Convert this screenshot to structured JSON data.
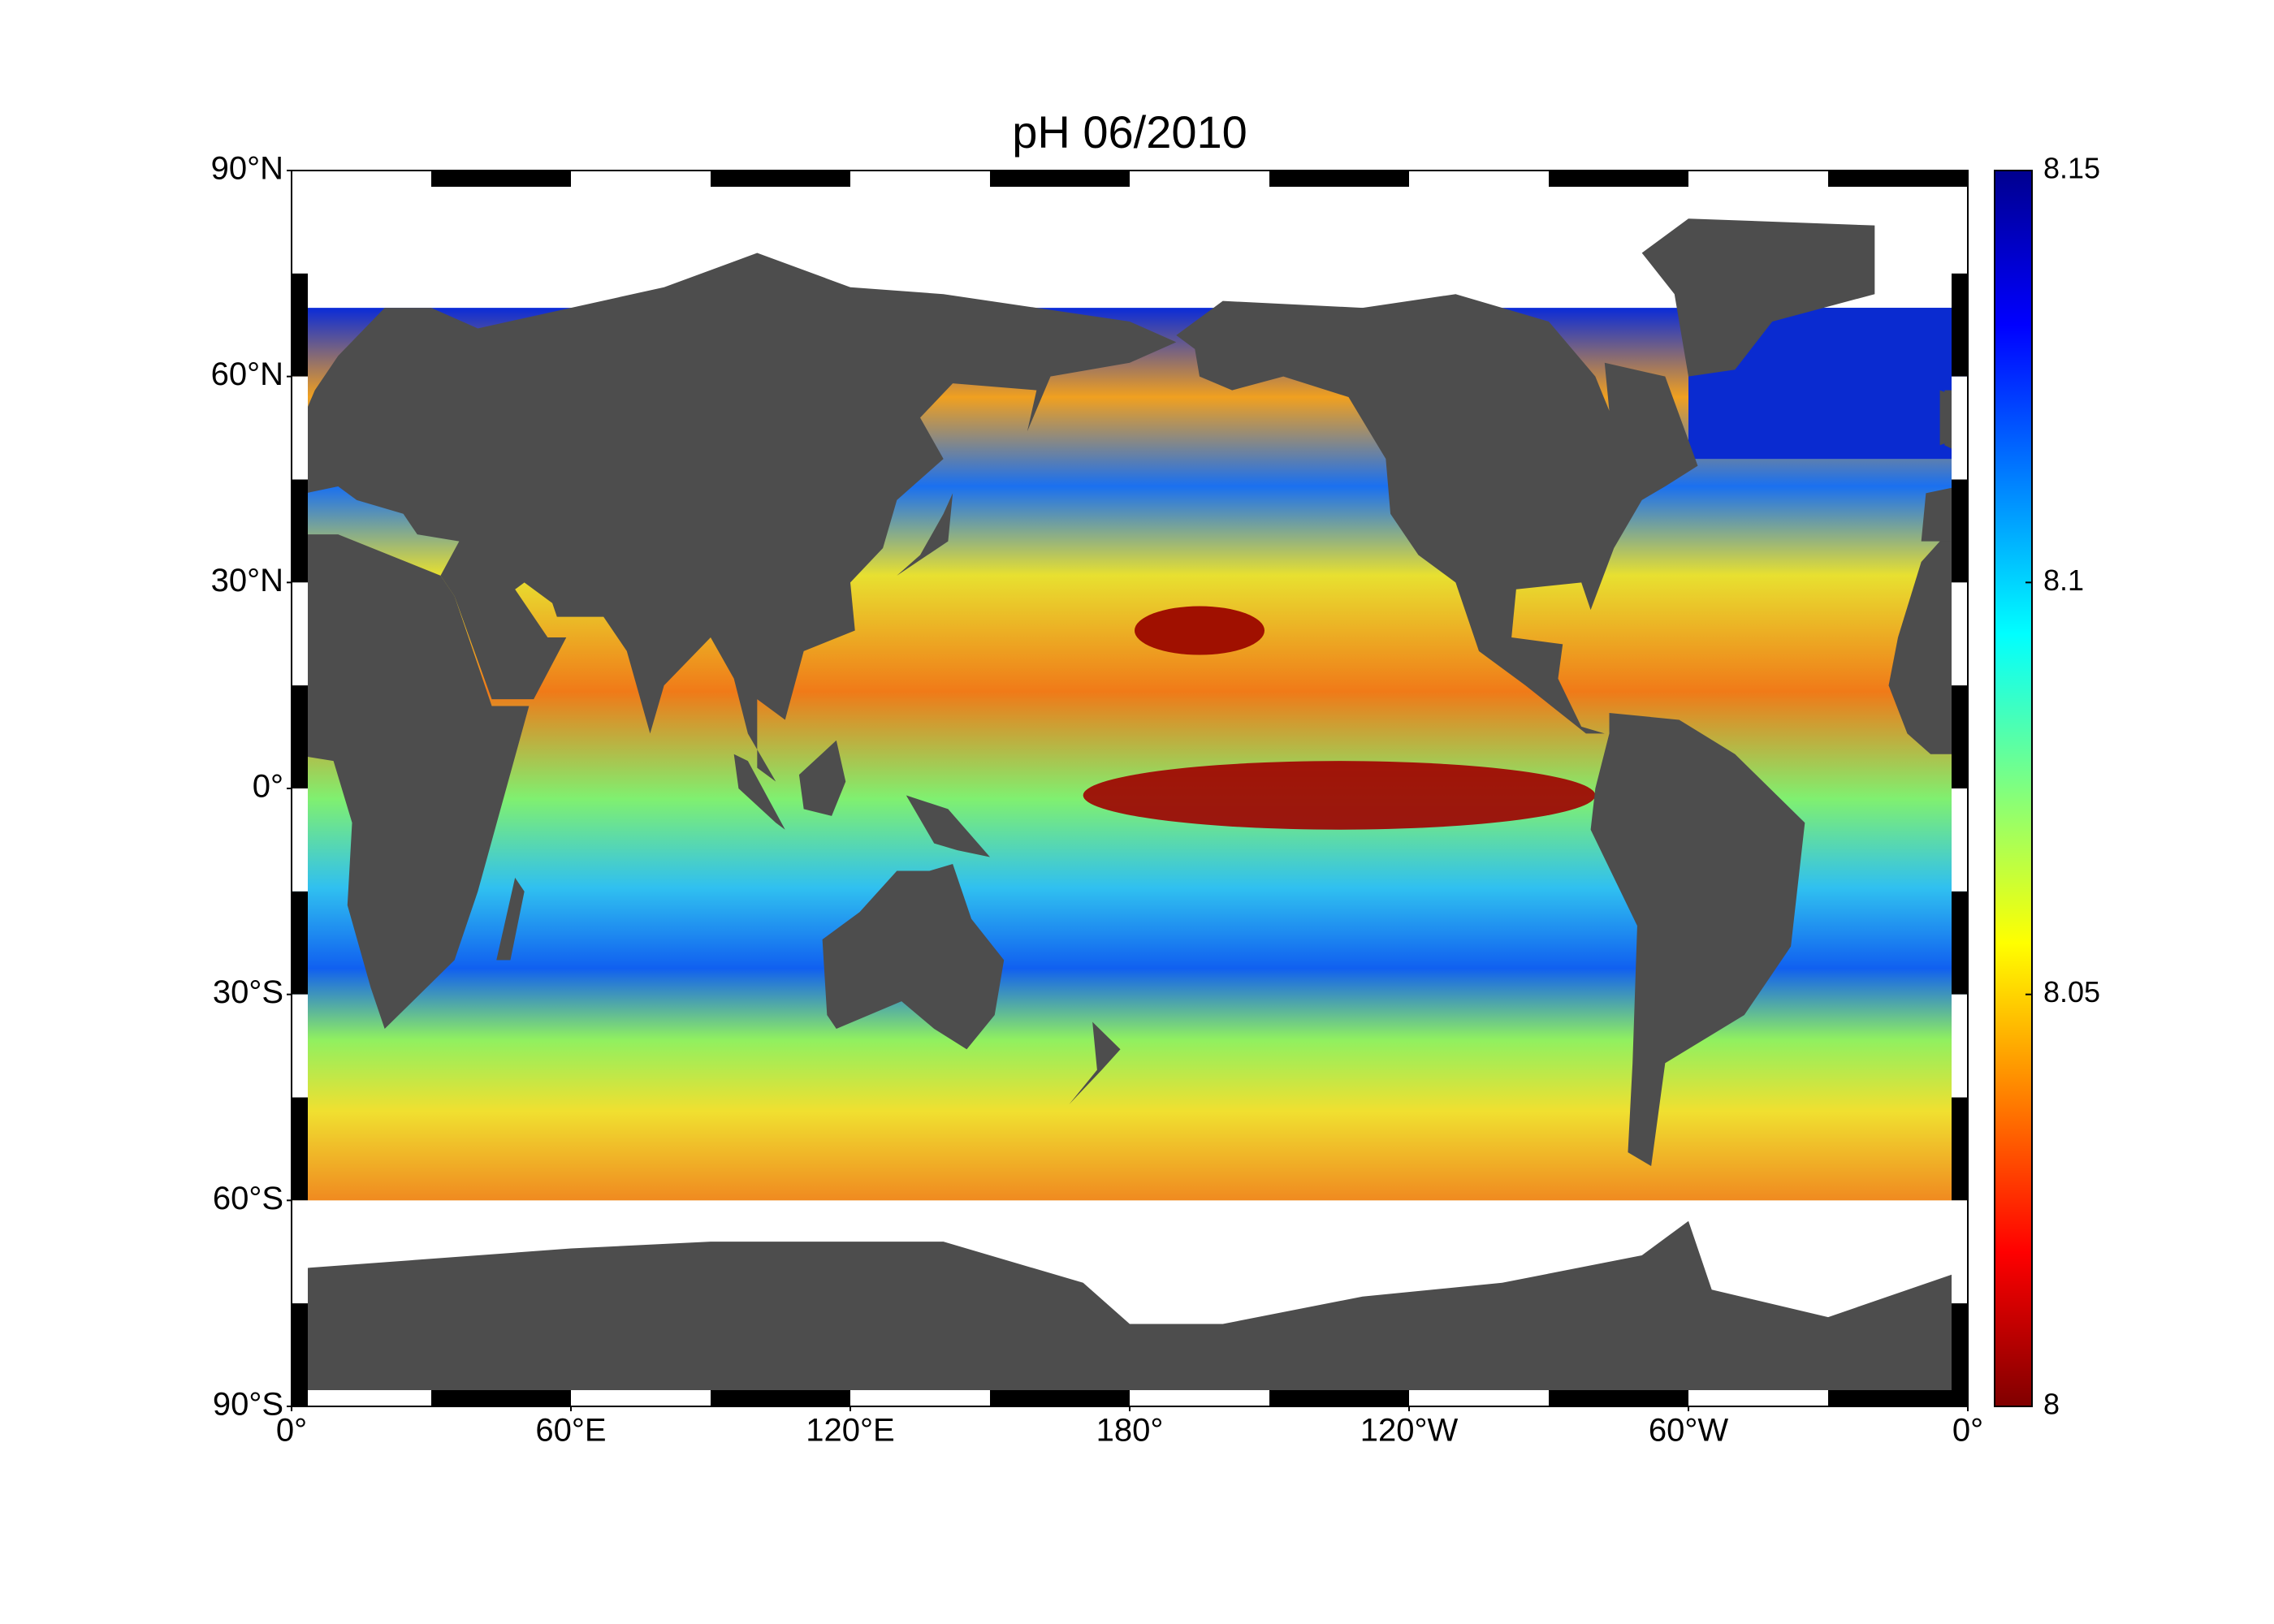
{
  "map": {
    "title": "pH  06/2010",
    "lat_lim": [
      -90,
      90
    ],
    "lat_ticks": [
      {
        "value": 90,
        "label": "90°N"
      },
      {
        "value": 60,
        "label": "60°N"
      },
      {
        "value": 30,
        "label": "30°N"
      },
      {
        "value": 0,
        "label": "0°"
      },
      {
        "value": -30,
        "label": "30°S"
      },
      {
        "value": -60,
        "label": "60°S"
      },
      {
        "value": -90,
        "label": "90°S"
      }
    ],
    "lon_lim": [
      0,
      360
    ],
    "lon_ticks": [
      {
        "value": 0,
        "label": "0°"
      },
      {
        "value": 60,
        "label": "60°E"
      },
      {
        "value": 120,
        "label": "120°E"
      },
      {
        "value": 180,
        "label": "180°"
      },
      {
        "value": 240,
        "label": "120°W"
      },
      {
        "value": 300,
        "label": "60°W"
      },
      {
        "value": 360,
        "label": "0°"
      }
    ],
    "colorbar": {
      "colormap": "jet",
      "lim": [
        8,
        8.15
      ],
      "ticks": [
        8,
        8.05,
        8.1,
        8.15
      ]
    }
  }
}
